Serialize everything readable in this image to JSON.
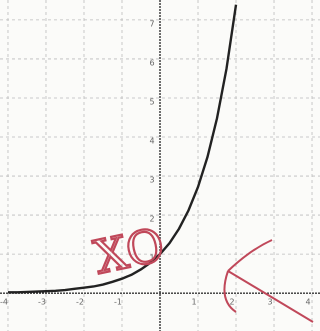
{
  "chart_data": {
    "type": "line",
    "x": [
      -4,
      -3.75,
      -3.5,
      -3.25,
      -3,
      -2.75,
      -2.5,
      -2.25,
      -2,
      -1.75,
      -1.5,
      -1.25,
      -1,
      -0.75,
      -0.5,
      -0.25,
      0,
      0.25,
      0.5,
      0.75,
      1,
      1.25,
      1.5,
      1.75,
      2
    ],
    "series": [
      {
        "color": "#222222",
        "values": [
          0.02,
          0.02,
          0.03,
          0.04,
          0.05,
          0.06,
          0.08,
          0.11,
          0.14,
          0.17,
          0.22,
          0.29,
          0.37,
          0.47,
          0.61,
          0.78,
          1,
          1.28,
          1.65,
          2.12,
          2.72,
          3.49,
          4.48,
          5.75,
          7.39
        ]
      }
    ],
    "xlim": [
      -4.21,
      4.21
    ],
    "ylim": [
      -0.97,
      7.51
    ],
    "xticks": [
      -4,
      -3,
      -2,
      -1,
      1,
      2,
      3,
      4
    ],
    "yticks": [
      1,
      2,
      3,
      4,
      5,
      6,
      7
    ],
    "grid": true,
    "annotation": "XO"
  }
}
